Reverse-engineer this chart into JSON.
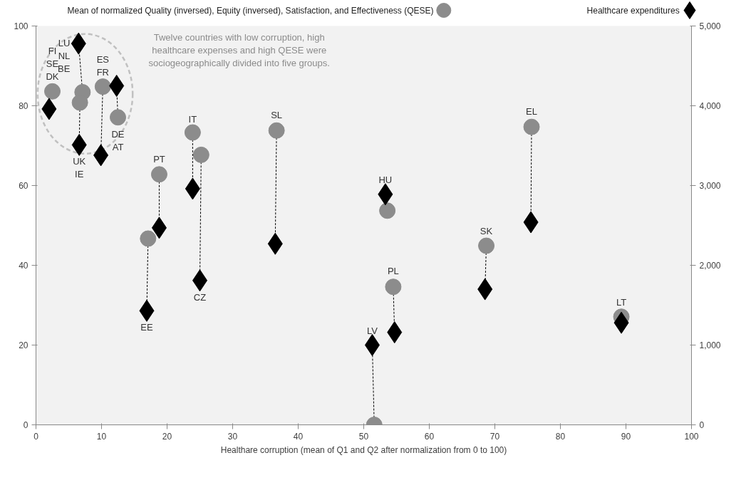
{
  "chart_data": {
    "type": "scatter",
    "xlabel": "Healthare corruption (mean of Q1 and Q2 after normalization from 0 to 100)",
    "xlim": [
      0,
      100
    ],
    "xticks": [
      0,
      10,
      20,
      30,
      40,
      50,
      60,
      70,
      80,
      90,
      100
    ],
    "ylim": [
      0,
      100
    ],
    "yticks": [
      0,
      20,
      40,
      60,
      80,
      100
    ],
    "y2lim": [
      0,
      5000
    ],
    "y2ticks": [
      0,
      {
        "value": 1000,
        "label": "1,000"
      },
      {
        "value": 2000,
        "label": "2,000"
      },
      {
        "value": 3000,
        "label": "3,000"
      },
      {
        "value": 4000,
        "label": "4,000"
      },
      {
        "value": 5000,
        "label": "5,000"
      }
    ],
    "grid": false,
    "legend": "top",
    "series": [
      {
        "name": "Mean of normalized Quality (inversed), Equity (inversed), Satisfaction, and Effectiveness (QESE)",
        "color": "#8c8c8c",
        "marker": "circle",
        "x": [
          2.5,
          7.1,
          6.7,
          10.2,
          12.5,
          23.9,
          25.2,
          18.8,
          17.1,
          36.7,
          53.6,
          54.5,
          51.6,
          68.7,
          75.6,
          89.3
        ],
        "values": [
          83.6,
          83.4,
          80.8,
          84.8,
          77.1,
          73.3,
          67.7,
          62.8,
          46.7,
          73.8,
          53.7,
          34.6,
          0,
          44.9,
          74.7,
          27.1
        ]
      },
      {
        "name": "Healthcare expenditures",
        "color": "#000000",
        "marker": "diamond",
        "axis": "y2",
        "x": [
          2.0,
          6.5,
          6.6,
          9.9,
          12.3,
          23.9,
          25.0,
          18.8,
          16.9,
          36.5,
          53.3,
          54.7,
          51.3,
          68.5,
          75.5,
          89.3
        ],
        "values": [
          3960,
          4780,
          3510,
          3380,
          4250,
          2960,
          1810,
          2470,
          1430,
          2270,
          2890,
          1160,
          1000,
          1700,
          2540,
          1280
        ]
      }
    ],
    "annotations": [
      "Twelve countries with low corruption, high\nhealthcare expenses and high QESE were\nsociogeographically divided into five groups.",
      {
        "text": "FI\nSE\nDK",
        "x": 2.5,
        "y": 83.6
      },
      {
        "text": "LU\nNL\nBE",
        "x": 6.5,
        "y": 95.6
      },
      {
        "text": "ES\nFR",
        "x": 10.2,
        "y": 84.8
      },
      {
        "text": "UK\nIE",
        "x": 6.6,
        "y": 70.2
      },
      {
        "text": "DE\nAT",
        "x": 12.5,
        "y": 77.1
      },
      {
        "text": "IT",
        "x": 23.9,
        "y": 73
      },
      {
        "text": "PT",
        "x": 18.8,
        "y": 63
      },
      {
        "text": "EE",
        "x": 16.9,
        "y": 28.6
      },
      {
        "text": "CZ",
        "x": 25.0,
        "y": 36.2
      },
      {
        "text": "SL",
        "x": 36.7,
        "y": 74
      },
      {
        "text": "HU",
        "x": 53.3,
        "y": 57.8
      },
      {
        "text": "PL",
        "x": 54.5,
        "y": 35
      },
      {
        "text": "LV",
        "x": 51.3,
        "y": 20
      },
      {
        "text": "SK",
        "x": 68.7,
        "y": 45
      },
      {
        "text": "EL",
        "x": 75.6,
        "y": 75
      },
      {
        "text": "LT",
        "x": 89.3,
        "y": 27
      }
    ]
  }
}
